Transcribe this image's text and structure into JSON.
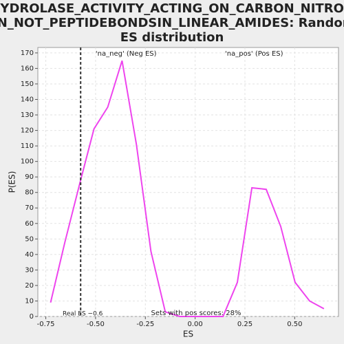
{
  "chart_data": {
    "type": "line",
    "title": [
      "HYDROLASE_ACTIVITY_ACTING_ON_CARBON_NITROG",
      "EN_NOT_PEPTIDEBONDSIN_LINEAR_AMIDES: Random",
      "ES distribution"
    ],
    "xlabel": "ES",
    "ylabel": "P(ES)",
    "x": [
      -0.726,
      -0.654,
      -0.581,
      -0.508,
      -0.439,
      -0.367,
      -0.295,
      -0.222,
      -0.15,
      -0.078,
      -0.005,
      0.067,
      0.14,
      0.212,
      0.285,
      0.357,
      0.43,
      0.502,
      0.575,
      0.647
    ],
    "series": [
      {
        "name": null,
        "color": "#ee44ee",
        "values": [
          9,
          48,
          85,
          121,
          135,
          165,
          111,
          42,
          3,
          0,
          0,
          0,
          0,
          22,
          83,
          82,
          58,
          22,
          10,
          5
        ]
      }
    ],
    "xlim": [
      -0.79,
      0.72
    ],
    "ylim": [
      0,
      173.5
    ],
    "xticks": [
      -0.75,
      {
        "value": -0.5,
        "label": "-0.50"
      },
      -0.25,
      {
        "value": 0,
        "label": "0.00"
      },
      0.25,
      {
        "value": 0.5,
        "label": "0.50"
      }
    ],
    "yticks": [
      0,
      10,
      20,
      30,
      40,
      50,
      60,
      70,
      80,
      90,
      100,
      110,
      120,
      130,
      140,
      150,
      160,
      170
    ],
    "grid": true,
    "real_es": {
      "value": -0.575,
      "label": "Real ES −0.6"
    },
    "annotations": [
      {
        "text": "'na_neg' (Neg ES)",
        "color": "#3333cc",
        "x": -0.5
      },
      {
        "text": "'na_pos' (Pos ES)",
        "color": "#dd3333",
        "x": 0.15
      }
    ],
    "footnote": "Sets with pos scores: 28%"
  }
}
